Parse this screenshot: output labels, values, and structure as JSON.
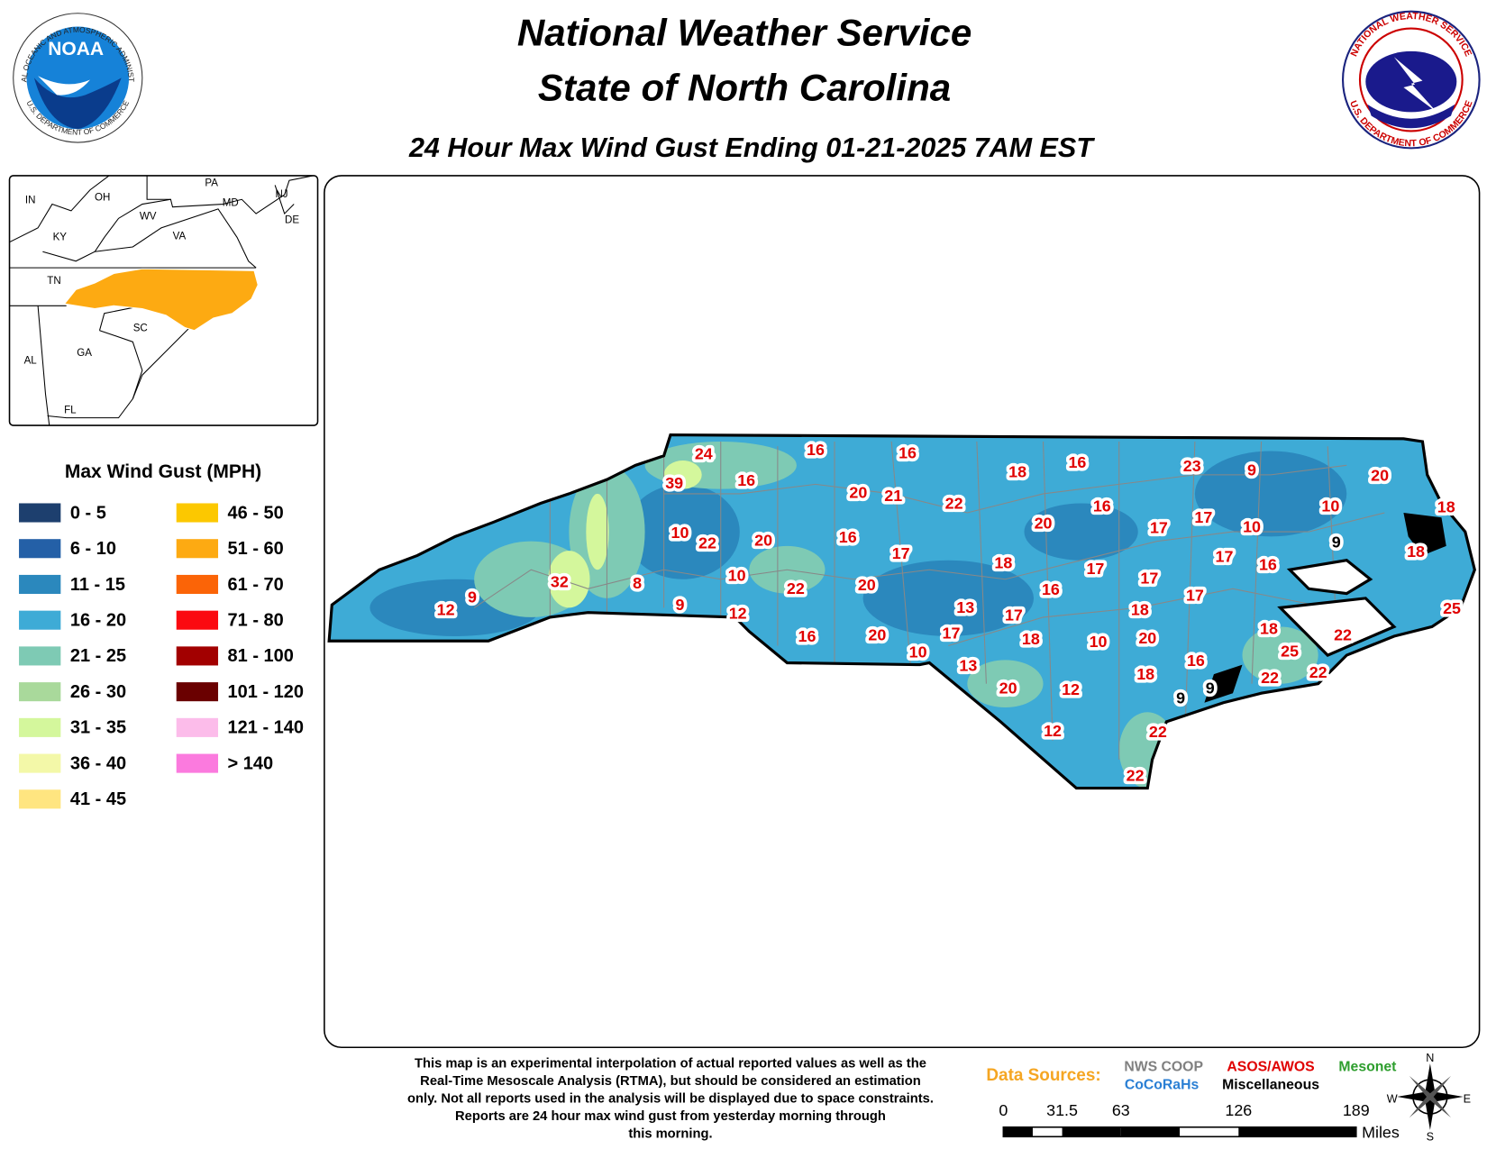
{
  "header": {
    "title": "National Weather Service",
    "subtitle": "State of North Carolina",
    "product": "24 Hour Max Wind Gust Ending 01-21-2025 7AM EST"
  },
  "logos": {
    "noaa": {
      "name": "NOAA",
      "ring_top": "NATIONAL OCEANIC AND ATMOSPHERIC ADMINISTRATION",
      "ring_bottom": "U.S. DEPARTMENT OF COMMERCE"
    },
    "nws": {
      "ring_top": "NATIONAL WEATHER SERVICE",
      "ring_bottom": "U.S. DEPARTMENT OF COMMERCE"
    }
  },
  "inset": {
    "labels": [
      "IN",
      "OH",
      "PA",
      "MD",
      "NJ",
      "DE",
      "WV",
      "VA",
      "KY",
      "TN",
      "SC",
      "GA",
      "AL",
      "FL"
    ]
  },
  "legend": {
    "title": "Max Wind Gust (MPH)",
    "items": [
      {
        "label": "0 - 5",
        "color": "#1d3f6e"
      },
      {
        "label": "6 - 10",
        "color": "#2460a7"
      },
      {
        "label": "11 - 15",
        "color": "#2b88bd"
      },
      {
        "label": "16 - 20",
        "color": "#3eabd6"
      },
      {
        "label": "21 - 25",
        "color": "#7ecab4"
      },
      {
        "label": "26 - 30",
        "color": "#a9d99b"
      },
      {
        "label": "31 - 35",
        "color": "#d4f79c"
      },
      {
        "label": "36 - 40",
        "color": "#f3f8a8"
      },
      {
        "label": "41 - 45",
        "color": "#ffe580"
      },
      {
        "label": "46 - 50",
        "color": "#fcc800"
      },
      {
        "label": "51 - 60",
        "color": "#fdaa12"
      },
      {
        "label": "61 - 70",
        "color": "#fb6407"
      },
      {
        "label": "71 - 80",
        "color": "#fb0a10"
      },
      {
        "label": "81 - 100",
        "color": "#a20000"
      },
      {
        "label": "101 - 120",
        "color": "#6a0000"
      },
      {
        "label": "121 - 140",
        "color": "#fcbcea"
      },
      {
        "label": "> 140",
        "color": "#fb7ade"
      }
    ]
  },
  "stations": [
    {
      "value": 24,
      "color": "#e00000"
    },
    {
      "value": 16,
      "color": "#e00000"
    },
    {
      "value": 16,
      "color": "#e00000"
    },
    {
      "value": 39,
      "color": "#e00000"
    },
    {
      "value": 16,
      "color": "#e00000"
    },
    {
      "value": 20,
      "color": "#e00000"
    },
    {
      "value": 21,
      "color": "#e00000"
    },
    {
      "value": 22,
      "color": "#e00000"
    },
    {
      "value": 18,
      "color": "#e00000"
    },
    {
      "value": 16,
      "color": "#e00000"
    },
    {
      "value": 23,
      "color": "#e00000"
    },
    {
      "value": 9,
      "color": "#e00000"
    },
    {
      "value": 20,
      "color": "#e00000"
    },
    {
      "value": 18,
      "color": "#e00000"
    },
    {
      "value": 10,
      "color": "#e00000"
    },
    {
      "value": 10,
      "color": "#e00000"
    },
    {
      "value": 22,
      "color": "#e00000"
    },
    {
      "value": 20,
      "color": "#e00000"
    },
    {
      "value": 16,
      "color": "#e00000"
    },
    {
      "value": 17,
      "color": "#e00000"
    },
    {
      "value": 20,
      "color": "#e00000"
    },
    {
      "value": 16,
      "color": "#e00000"
    },
    {
      "value": 17,
      "color": "#e00000"
    },
    {
      "value": 17,
      "color": "#e00000"
    },
    {
      "value": 10,
      "color": "#e00000"
    },
    {
      "value": 9,
      "color": "#000000"
    },
    {
      "value": 18,
      "color": "#e00000"
    },
    {
      "value": 18,
      "color": "#e00000"
    },
    {
      "value": 17,
      "color": "#e00000"
    },
    {
      "value": 17,
      "color": "#e00000"
    },
    {
      "value": 17,
      "color": "#e00000"
    },
    {
      "value": 16,
      "color": "#e00000"
    },
    {
      "value": 32,
      "color": "#e00000"
    },
    {
      "value": 8,
      "color": "#e00000"
    },
    {
      "value": 10,
      "color": "#e00000"
    },
    {
      "value": 22,
      "color": "#e00000"
    },
    {
      "value": 20,
      "color": "#e00000"
    },
    {
      "value": 16,
      "color": "#e00000"
    },
    {
      "value": 17,
      "color": "#e00000"
    },
    {
      "value": 25,
      "color": "#e00000"
    },
    {
      "value": 12,
      "color": "#e00000"
    },
    {
      "value": 9,
      "color": "#e00000"
    },
    {
      "value": 9,
      "color": "#e00000"
    },
    {
      "value": 12,
      "color": "#e00000"
    },
    {
      "value": 13,
      "color": "#e00000"
    },
    {
      "value": 17,
      "color": "#e00000"
    },
    {
      "value": 18,
      "color": "#e00000"
    },
    {
      "value": 18,
      "color": "#e00000"
    },
    {
      "value": 22,
      "color": "#e00000"
    },
    {
      "value": 16,
      "color": "#e00000"
    },
    {
      "value": 20,
      "color": "#e00000"
    },
    {
      "value": 17,
      "color": "#e00000"
    },
    {
      "value": 18,
      "color": "#e00000"
    },
    {
      "value": 10,
      "color": "#e00000"
    },
    {
      "value": 20,
      "color": "#e00000"
    },
    {
      "value": 25,
      "color": "#e00000"
    },
    {
      "value": 10,
      "color": "#e00000"
    },
    {
      "value": 13,
      "color": "#e00000"
    },
    {
      "value": 16,
      "color": "#e00000"
    },
    {
      "value": 18,
      "color": "#e00000"
    },
    {
      "value": 22,
      "color": "#e00000"
    },
    {
      "value": 22,
      "color": "#e00000"
    },
    {
      "value": 20,
      "color": "#e00000"
    },
    {
      "value": 12,
      "color": "#e00000"
    },
    {
      "value": 9,
      "color": "#000000"
    },
    {
      "value": 9,
      "color": "#000000"
    },
    {
      "value": 12,
      "color": "#e00000"
    },
    {
      "value": 22,
      "color": "#e00000"
    },
    {
      "value": 22,
      "color": "#e00000"
    }
  ],
  "footer": {
    "disclaimer": [
      "This map is an experimental interpolation of actual reported values as well as the",
      "Real-Time Mesoscale Analysis (RTMA), but should be considered an estimation",
      "only. Not all reports used in the analysis will be displayed due to space constraints.",
      "Reports are 24 hour max wind gust from yesterday morning through",
      "this morning."
    ],
    "sources_label": "Data Sources:",
    "sources": [
      {
        "name": "NWS COOP",
        "color": "#808080"
      },
      {
        "name": "ASOS/AWOS",
        "color": "#e00000"
      },
      {
        "name": "Mesonet",
        "color": "#2e9e2e"
      },
      {
        "name": "CoCoRaHs",
        "color": "#2a7fd4"
      },
      {
        "name": "Miscellaneous",
        "color": "#000000"
      }
    ],
    "scale": {
      "ticks": [
        0,
        31.5,
        63,
        126,
        189
      ],
      "unit": "Miles"
    },
    "compass": [
      "N",
      "E",
      "S",
      "W"
    ]
  }
}
